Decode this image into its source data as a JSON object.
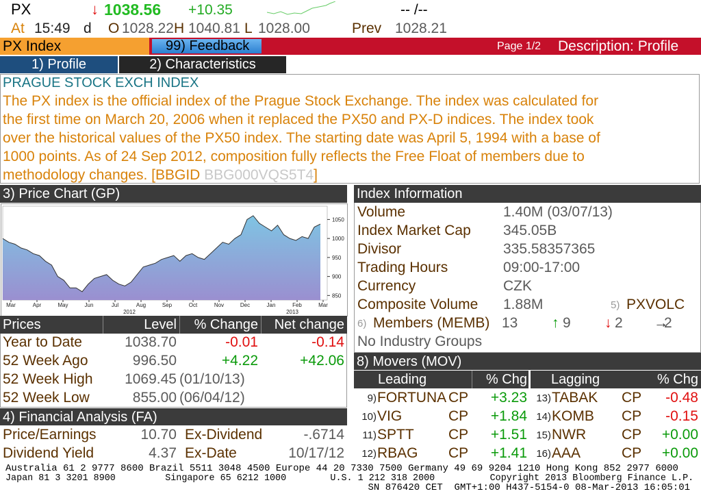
{
  "header": {
    "ticker": "PX",
    "direction": "↓",
    "last": "1038.56",
    "change": "+10.35",
    "bid_ask": "-- /--",
    "at_label": "At",
    "time": "15:49",
    "d": "d",
    "open_label": "O",
    "open": "1028.22",
    "high_label": "H",
    "high": "1040.81",
    "low_label": "L",
    "low": "1028.00",
    "prev_label": "Prev",
    "prev": "1028.21"
  },
  "toolbar": {
    "security": "PX Index",
    "feedback": "99) Feedback",
    "page": "Page 1/2",
    "screen": "Description: Profile"
  },
  "tabs": [
    "1) Profile",
    "2) Characteristics"
  ],
  "description": {
    "title": "PRAGUE STOCK EXCH INDEX",
    "lines": [
      "The PX index is the official index of the Prague Stock Exchange. The index was calculated for",
      "the first time on March 20, 2006 when it replaced the PX50 and PX-D indices. The index took",
      "over the historical values of the PX50 index. The starting date was April 5, 1994 with a base of",
      "1000 points. As of 24 Sep 2012, composition fully reflects the Free Float of members due to"
    ],
    "last_line": "methodology changes. [BBGID ",
    "bbgid": "BBG000VQS5T4",
    "close": "]"
  },
  "chart_data": {
    "type": "area",
    "title": "3) Price Chart (GP)",
    "xtick_labels": [
      "Mar",
      "Apr",
      "May",
      "Jun",
      "Jul",
      "Aug",
      "Sep",
      "Oct",
      "Nov",
      "Dec",
      "Jan",
      "Feb",
      "Mar"
    ],
    "year_labels": [
      "2012",
      "2013"
    ],
    "values": [
      1000,
      990,
      985,
      975,
      970,
      960,
      955,
      940,
      930,
      900,
      890,
      870,
      870,
      860,
      880,
      895,
      900,
      905,
      890,
      880,
      875,
      885,
      905,
      925,
      930,
      935,
      945,
      950,
      955,
      940,
      955,
      960,
      950,
      945,
      960,
      975,
      990,
      985,
      1000,
      1010,
      1050,
      1060,
      1040,
      1030,
      1020,
      1035,
      1010,
      1000,
      995,
      1005,
      1000,
      1030,
      1038
    ],
    "color": "#7fc4e3",
    "ylim": [
      838,
      1085
    ],
    "yticks": [
      850,
      900,
      950,
      1000,
      1050
    ]
  },
  "prices": {
    "columns": [
      "Prices",
      "Level",
      "% Change",
      "Net change"
    ],
    "rows": [
      [
        "Year to Date",
        "1038.70",
        "-0.01",
        "-0.14"
      ],
      [
        "52 Week Ago",
        "996.50",
        "+4.22",
        "+42.06"
      ],
      [
        "52 Week High",
        "1069.45",
        "(01/10/13)"
      ],
      [
        "52 Week Low",
        "855.00",
        "(06/04/12)"
      ]
    ]
  },
  "financial": {
    "title": "4) Financial Analysis (FA)",
    "rows": [
      [
        "Price/Earnings",
        "10.70",
        "Ex-Dividend",
        "-.6714"
      ],
      [
        "Dividend Yield",
        "4.37",
        "Ex-Date",
        "10/17/12"
      ]
    ]
  },
  "index_info": {
    "title": "Index Information",
    "rows": [
      [
        "Volume",
        "1.40M (03/07/13)"
      ],
      [
        "Index Market Cap",
        "345.05B"
      ],
      [
        "Divisor",
        "335.58357365"
      ],
      [
        "Trading Hours",
        "09:00-17:00"
      ],
      [
        "Currency",
        "CZK"
      ],
      [
        "Composite Volume",
        "1.88M"
      ]
    ],
    "pxvolc_num": "5)",
    "pxvolc": "PXVOLC",
    "members_num": "6)",
    "members_label": "Members (MEMB)",
    "members": "13",
    "up_arrow": "↑",
    "up": "9",
    "down_arrow": "↓",
    "down": "2",
    "flat_arrow": "→",
    "flat": "2",
    "no_groups": "No Industry Groups"
  },
  "movers": {
    "title": "8) Movers (MOV)",
    "columns": [
      "Leading",
      "% Chg",
      "Lagging",
      "% Chg"
    ],
    "leading": [
      [
        "9)",
        "FORTUNA",
        "CP",
        "+3.23"
      ],
      [
        "10)",
        "VIG",
        "CP",
        "+1.84"
      ],
      [
        "11)",
        "SPTT",
        "CP",
        "+1.51"
      ],
      [
        "12)",
        "RBAG",
        "CP",
        "+1.41"
      ]
    ],
    "lagging": [
      [
        "13)",
        "TABAK",
        "CP",
        "-0.48"
      ],
      [
        "14)",
        "KOMB",
        "CP",
        "-0.15"
      ],
      [
        "15)",
        "NWR",
        "CP",
        "+0.00"
      ],
      [
        "16)",
        "AAA",
        "CP",
        "+0.00"
      ]
    ]
  },
  "footer": {
    "lines": [
      "Australia 61 2 9777 8600 Brazil 5511 3048 4500 Europe 44 20 7330 7500 Germany 49 69 9204 1210 Hong Kong 852 2977 6000",
      "Japan 81 3 3201 8900         Singapore 65 6212 1000        U.S. 1 212 318 2000          Copyright 2013 Bloomberg Finance L.P.",
      "SN 876420 CET  GMT+1:00 H437-5154-0 08-Mar-2013 16:05:01"
    ]
  }
}
